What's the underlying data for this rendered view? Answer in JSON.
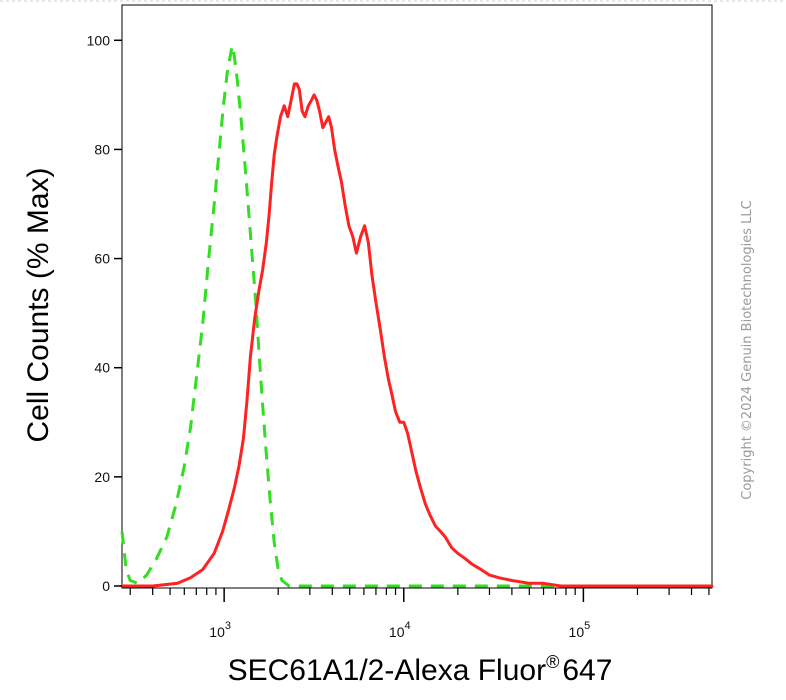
{
  "chart_data": {
    "type": "line",
    "title": "",
    "xlabel": "SEC61A1/2-Alexa Fluor",
    "xlabel_superscript": "®",
    "xlabel_suffix": "647",
    "ylabel": "Cell Counts (% Max)",
    "x_scale": "log",
    "xlim": [
      270,
      520000
    ],
    "ylim": [
      0,
      105
    ],
    "y_ticks": [
      0,
      20,
      40,
      60,
      80,
      100
    ],
    "x_major_ticks": [
      1000,
      10000,
      100000
    ],
    "x_tick_labels": [
      {
        "base": "10",
        "exp": "3"
      },
      {
        "base": "10",
        "exp": "4"
      },
      {
        "base": "10",
        "exp": "5"
      }
    ],
    "grid": false,
    "series": [
      {
        "color": "#33dd22",
        "style": "dashed",
        "points": [
          [
            270,
            10
          ],
          [
            285,
            3
          ],
          [
            300,
            1
          ],
          [
            330,
            0.5
          ],
          [
            370,
            2
          ],
          [
            420,
            5
          ],
          [
            480,
            9
          ],
          [
            540,
            15
          ],
          [
            600,
            22
          ],
          [
            650,
            29
          ],
          [
            700,
            38
          ],
          [
            760,
            48
          ],
          [
            820,
            60
          ],
          [
            880,
            70
          ],
          [
            940,
            80
          ],
          [
            990,
            88
          ],
          [
            1040,
            94
          ],
          [
            1080,
            97
          ],
          [
            1110,
            99
          ],
          [
            1140,
            97
          ],
          [
            1180,
            93
          ],
          [
            1240,
            86
          ],
          [
            1300,
            78
          ],
          [
            1360,
            70
          ],
          [
            1420,
            62
          ],
          [
            1500,
            52
          ],
          [
            1570,
            42
          ],
          [
            1640,
            33
          ],
          [
            1720,
            24
          ],
          [
            1800,
            16
          ],
          [
            1900,
            8
          ],
          [
            2000,
            3
          ],
          [
            2100,
            1
          ],
          [
            2300,
            0
          ],
          [
            3000,
            0
          ],
          [
            10000,
            0
          ],
          [
            100000,
            0
          ],
          [
            520000,
            0
          ]
        ]
      },
      {
        "color": "#ff2222",
        "style": "solid",
        "points": [
          [
            270,
            0
          ],
          [
            400,
            0
          ],
          [
            550,
            0.5
          ],
          [
            650,
            1.5
          ],
          [
            760,
            3
          ],
          [
            880,
            6
          ],
          [
            980,
            10
          ],
          [
            1060,
            14
          ],
          [
            1140,
            18
          ],
          [
            1210,
            22
          ],
          [
            1280,
            27
          ],
          [
            1340,
            34
          ],
          [
            1400,
            42
          ],
          [
            1480,
            49
          ],
          [
            1560,
            54
          ],
          [
            1640,
            58
          ],
          [
            1720,
            63
          ],
          [
            1780,
            68
          ],
          [
            1840,
            74
          ],
          [
            1900,
            79
          ],
          [
            1960,
            82
          ],
          [
            2060,
            86
          ],
          [
            2160,
            88
          ],
          [
            2260,
            86
          ],
          [
            2360,
            89
          ],
          [
            2460,
            92
          ],
          [
            2540,
            92
          ],
          [
            2620,
            91
          ],
          [
            2720,
            87
          ],
          [
            2820,
            86
          ],
          [
            2940,
            88
          ],
          [
            3060,
            89
          ],
          [
            3170,
            90
          ],
          [
            3280,
            89
          ],
          [
            3400,
            87
          ],
          [
            3540,
            84
          ],
          [
            3680,
            85
          ],
          [
            3820,
            86
          ],
          [
            3960,
            84
          ],
          [
            4120,
            80
          ],
          [
            4300,
            77
          ],
          [
            4500,
            74
          ],
          [
            4700,
            70
          ],
          [
            4950,
            66
          ],
          [
            5200,
            64
          ],
          [
            5450,
            61
          ],
          [
            5750,
            64
          ],
          [
            6050,
            66
          ],
          [
            6350,
            63
          ],
          [
            6650,
            57
          ],
          [
            7000,
            52
          ],
          [
            7400,
            47
          ],
          [
            7800,
            42
          ],
          [
            8200,
            38
          ],
          [
            8600,
            35
          ],
          [
            9000,
            32
          ],
          [
            9500,
            30
          ],
          [
            10000,
            30
          ],
          [
            10500,
            28
          ],
          [
            11000,
            25
          ],
          [
            11700,
            21
          ],
          [
            12400,
            18
          ],
          [
            13200,
            15
          ],
          [
            14000,
            13
          ],
          [
            15000,
            11
          ],
          [
            16000,
            10
          ],
          [
            17000,
            9
          ],
          [
            18500,
            7
          ],
          [
            20000,
            6
          ],
          [
            22000,
            5
          ],
          [
            24000,
            4
          ],
          [
            27000,
            3
          ],
          [
            30000,
            2
          ],
          [
            34000,
            1.5
          ],
          [
            40000,
            1
          ],
          [
            50000,
            0.5
          ],
          [
            60000,
            0.5
          ],
          [
            75000,
            0
          ],
          [
            100000,
            0
          ],
          [
            200000,
            0
          ],
          [
            520000,
            0
          ]
        ]
      }
    ]
  },
  "watermark": "Copyright ©2024 Genuin Biotechnologies LLC"
}
